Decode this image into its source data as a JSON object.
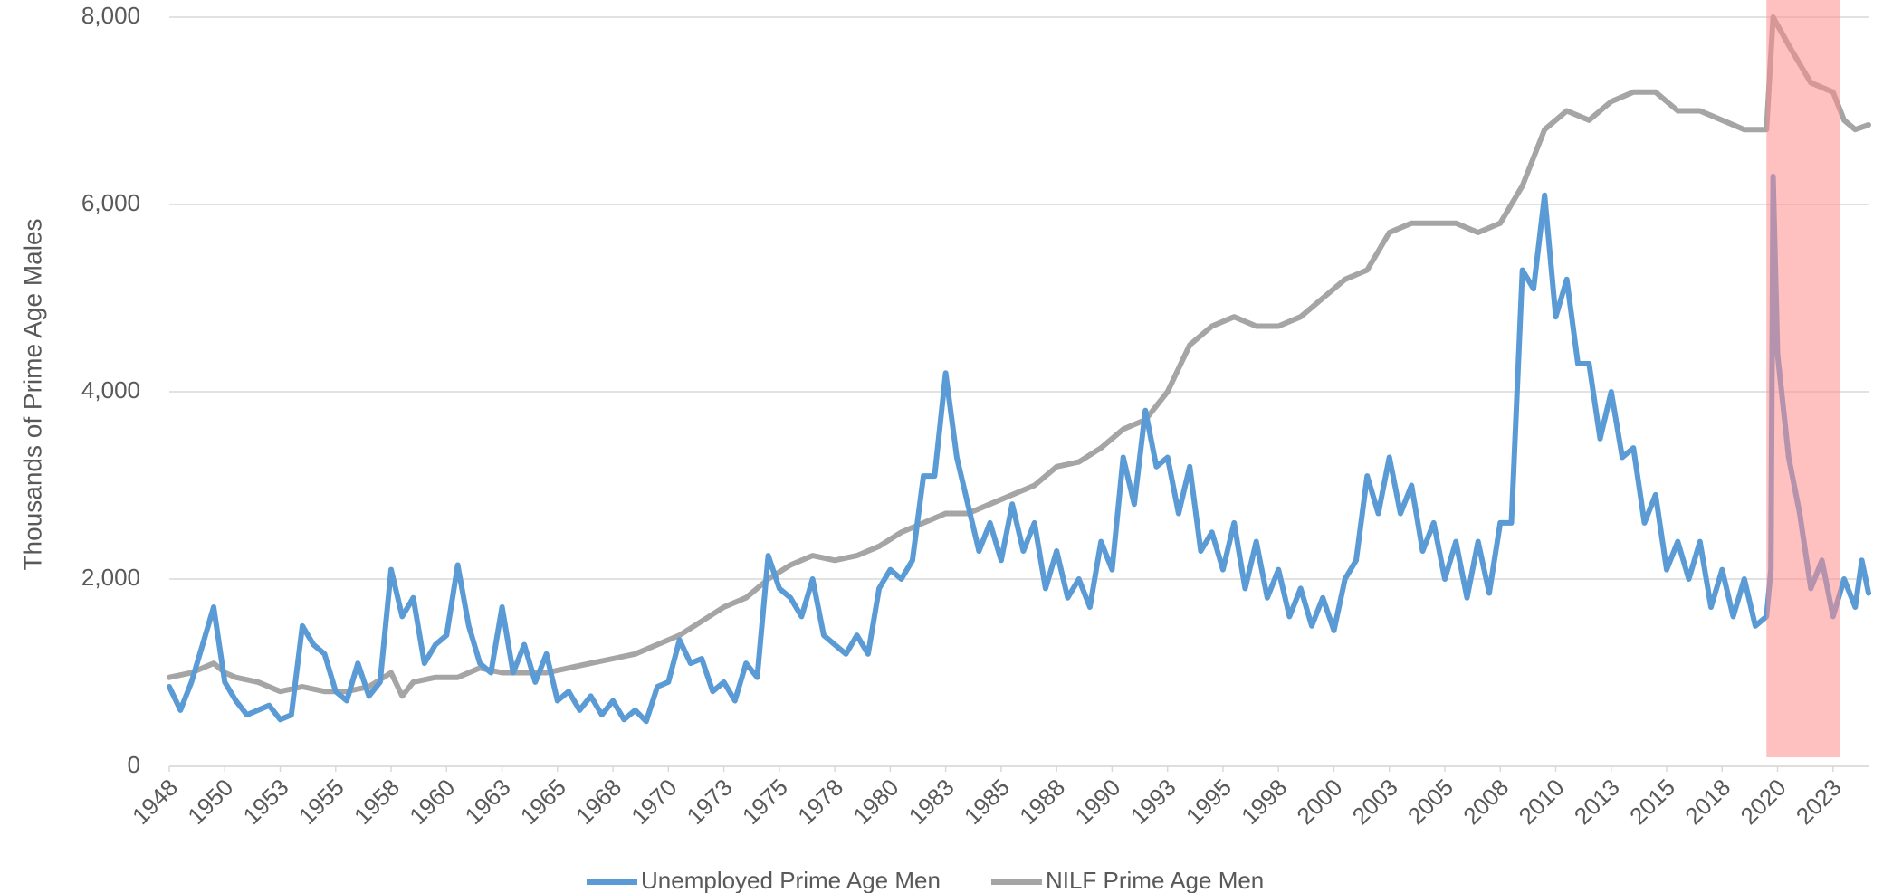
{
  "chart_data": {
    "type": "line",
    "y_label": "Thousands of Prime Age Males",
    "xlim": [
      1948,
      2024.6
    ],
    "ylim": [
      0,
      8000
    ],
    "yticks": [
      0,
      {
        "value": 2000,
        "label": "2,000"
      },
      {
        "value": 4000,
        "label": "4,000"
      },
      {
        "value": 6000,
        "label": "6,000"
      },
      {
        "value": 8000,
        "label": "8,000"
      }
    ],
    "xticks": [
      1948,
      {
        "value": 1950.5,
        "label": "1950"
      },
      1953,
      {
        "value": 1955.5,
        "label": "1955"
      },
      1958,
      {
        "value": 1960.5,
        "label": "1960"
      },
      1963,
      {
        "value": 1965.5,
        "label": "1965"
      },
      1968,
      {
        "value": 1970.5,
        "label": "1970"
      },
      1973,
      {
        "value": 1975.5,
        "label": "1975"
      },
      1978,
      {
        "value": 1980.5,
        "label": "1980"
      },
      1983,
      {
        "value": 1985.5,
        "label": "1985"
      },
      1988,
      {
        "value": 1990.5,
        "label": "1990"
      },
      1993,
      {
        "value": 1995.5,
        "label": "1995"
      },
      1998,
      {
        "value": 2000.5,
        "label": "2000"
      },
      2003,
      {
        "value": 2005.5,
        "label": "2005"
      },
      2008,
      {
        "value": 2010.5,
        "label": "2010"
      },
      2013,
      {
        "value": 2015.5,
        "label": "2015"
      },
      2018,
      {
        "value": 2020.5,
        "label": "2020"
      },
      2023
    ],
    "grid": true,
    "legend": "bottom",
    "shade": {
      "x": [
        2020.0,
        2023.3
      ],
      "color": "rgba(255,140,140,0.55)"
    },
    "series": [
      {
        "name": "Unemployed Prime Age Men",
        "color": "#5b9bd5",
        "x": [
          1948,
          1948.5,
          1949,
          1949.5,
          1950,
          1950.5,
          1951,
          1951.5,
          1952,
          1952.5,
          1953,
          1953.5,
          1954,
          1954.5,
          1955,
          1955.5,
          1956,
          1956.5,
          1957,
          1957.5,
          1958,
          1958.5,
          1959,
          1959.5,
          1960,
          1960.5,
          1961,
          1961.5,
          1962,
          1962.5,
          1963,
          1963.5,
          1964,
          1964.5,
          1965,
          1965.5,
          1966,
          1966.5,
          1967,
          1967.5,
          1968,
          1968.5,
          1969,
          1969.5,
          1970,
          1970.5,
          1971,
          1971.5,
          1972,
          1972.5,
          1973,
          1973.5,
          1974,
          1974.5,
          1975,
          1975.5,
          1976,
          1976.5,
          1977,
          1977.5,
          1978,
          1978.5,
          1979,
          1979.5,
          1980,
          1980.5,
          1981,
          1981.5,
          1982,
          1982.5,
          1983,
          1983.5,
          1984,
          1984.5,
          1985,
          1985.5,
          1986,
          1986.5,
          1987,
          1987.5,
          1988,
          1988.5,
          1989,
          1989.5,
          1990,
          1990.5,
          1991,
          1991.5,
          1992,
          1992.5,
          1993,
          1993.5,
          1994,
          1994.5,
          1995,
          1995.5,
          1996,
          1996.5,
          1997,
          1997.5,
          1998,
          1998.5,
          1999,
          1999.5,
          2000,
          2000.5,
          2001,
          2001.5,
          2002,
          2002.5,
          2003,
          2003.5,
          2004,
          2004.5,
          2005,
          2005.5,
          2006,
          2006.5,
          2007,
          2007.5,
          2008,
          2008.5,
          2009,
          2009.5,
          2010,
          2010.5,
          2011,
          2011.5,
          2012,
          2012.5,
          2013,
          2013.5,
          2014,
          2014.5,
          2015,
          2015.5,
          2016,
          2016.5,
          2017,
          2017.5,
          2018,
          2018.5,
          2019,
          2019.5,
          2020,
          2020.2,
          2020.3,
          2020.5,
          2021,
          2021.5,
          2022,
          2022.5,
          2023,
          2023.5,
          2024,
          2024.3,
          2024.6
        ],
        "values": [
          850,
          600,
          900,
          1300,
          1700,
          900,
          700,
          550,
          600,
          650,
          500,
          550,
          1500,
          1300,
          1200,
          800,
          700,
          1100,
          750,
          900,
          2100,
          1600,
          1800,
          1100,
          1300,
          1400,
          2150,
          1500,
          1100,
          1000,
          1700,
          1000,
          1300,
          900,
          1200,
          700,
          800,
          600,
          750,
          550,
          700,
          500,
          600,
          480,
          850,
          900,
          1350,
          1100,
          1150,
          800,
          900,
          700,
          1100,
          950,
          2250,
          1900,
          1800,
          1600,
          2000,
          1400,
          1300,
          1200,
          1400,
          1200,
          1900,
          2100,
          2000,
          2200,
          3100,
          3100,
          4200,
          3300,
          2800,
          2300,
          2600,
          2200,
          2800,
          2300,
          2600,
          1900,
          2300,
          1800,
          2000,
          1700,
          2400,
          2100,
          3300,
          2800,
          3800,
          3200,
          3300,
          2700,
          3200,
          2300,
          2500,
          2100,
          2600,
          1900,
          2400,
          1800,
          2100,
          1600,
          1900,
          1500,
          1800,
          1450,
          2000,
          2200,
          3100,
          2700,
          3300,
          2700,
          3000,
          2300,
          2600,
          2000,
          2400,
          1800,
          2400,
          1850,
          2600,
          2600,
          5300,
          5100,
          6100,
          4800,
          5200,
          4300,
          4300,
          3500,
          4000,
          3300,
          3400,
          2600,
          2900,
          2100,
          2400,
          2000,
          2400,
          1700,
          2100,
          1600,
          2000,
          1500,
          1600,
          2100,
          6300,
          4400,
          3300,
          2700,
          1900,
          2200,
          1600,
          2000,
          1700,
          2200,
          1850
        ]
      },
      {
        "name": "NILF Prime Age Men",
        "color": "#a5a5a5",
        "x": [
          1948,
          1949,
          1950,
          1950.5,
          1951,
          1952,
          1953,
          1954,
          1955,
          1956,
          1957,
          1958,
          1958.5,
          1959,
          1960,
          1961,
          1962,
          1963,
          1964,
          1965,
          1966,
          1967,
          1968,
          1969,
          1970,
          1971,
          1972,
          1973,
          1974,
          1975,
          1976,
          1977,
          1978,
          1979,
          1980,
          1981,
          1982,
          1983,
          1984,
          1985,
          1986,
          1987,
          1988,
          1989,
          1990,
          1991,
          1992,
          1993,
          1994,
          1995,
          1996,
          1997,
          1998,
          1999,
          2000,
          2001,
          2002,
          2003,
          2004,
          2005,
          2006,
          2007,
          2008,
          2009,
          2010,
          2011,
          2012,
          2013,
          2014,
          2015,
          2016,
          2017,
          2018,
          2019,
          2020,
          2020.3,
          2021,
          2022,
          2023,
          2023.5,
          2024,
          2024.6
        ],
        "values": [
          950,
          1000,
          1100,
          1000,
          950,
          900,
          800,
          850,
          800,
          800,
          850,
          1000,
          750,
          900,
          950,
          950,
          1050,
          1000,
          1000,
          1000,
          1050,
          1100,
          1150,
          1200,
          1300,
          1400,
          1550,
          1700,
          1800,
          2000,
          2150,
          2250,
          2200,
          2250,
          2350,
          2500,
          2600,
          2700,
          2700,
          2800,
          2900,
          3000,
          3200,
          3250,
          3400,
          3600,
          3700,
          4000,
          4500,
          4700,
          4800,
          4700,
          4700,
          4800,
          5000,
          5200,
          5300,
          5700,
          5800,
          5800,
          5800,
          5700,
          5800,
          6200,
          6800,
          7000,
          6900,
          7100,
          7200,
          7200,
          7000,
          7000,
          6900,
          6800,
          6800,
          8000,
          7700,
          7300,
          7200,
          6900,
          6800,
          6850
        ]
      }
    ]
  }
}
